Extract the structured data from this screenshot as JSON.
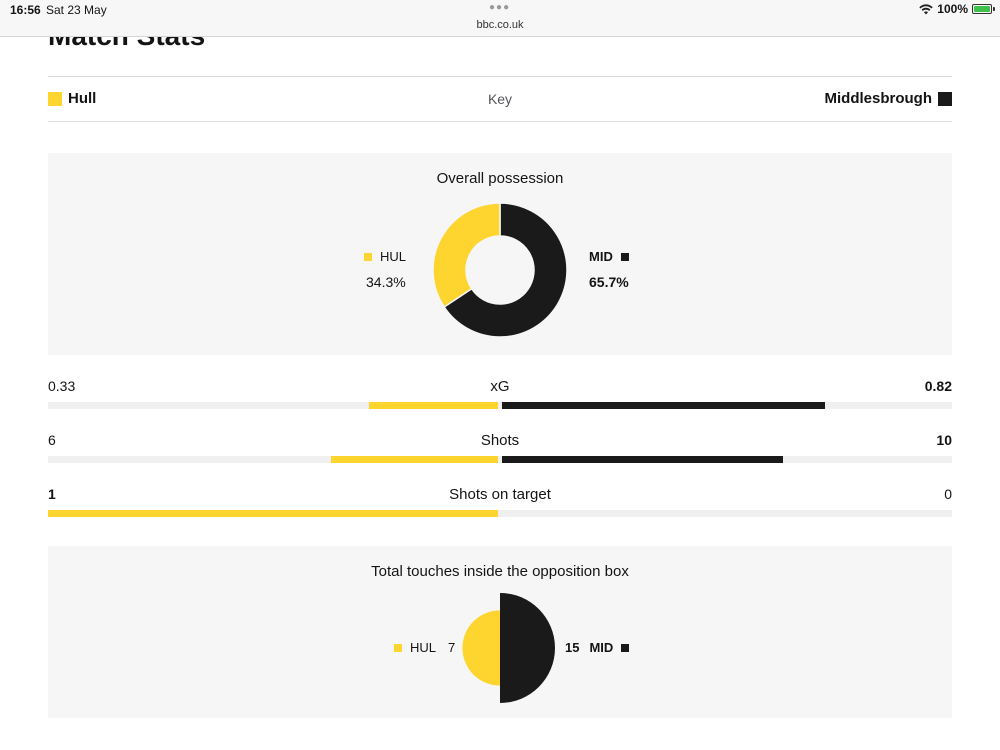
{
  "status_bar": {
    "time": "16:56",
    "date": "Sat 23 May",
    "url": "bbc.co.uk",
    "battery": "100%"
  },
  "title": "Match Stats",
  "key": {
    "home_team": "Hull",
    "away_team": "Middlesbrough",
    "label": "Key"
  },
  "colors": {
    "home": "#fed42e",
    "away": "#1a1a1a",
    "track": "#f0f0f0",
    "panel": "#f6f6f6"
  },
  "possession": {
    "title": "Overall possession",
    "home_abbr": "HUL",
    "away_abbr": "MID",
    "home_value": "34.3%",
    "away_value": "65.7%",
    "home_pct": 34.3,
    "away_pct": 65.7
  },
  "stats": [
    {
      "name": "xG",
      "home": "0.33",
      "away": "0.82",
      "home_share": 0.29,
      "away_share": 0.72,
      "leader": "away"
    },
    {
      "name": "Shots",
      "home": "6",
      "away": "10",
      "home_share": 0.375,
      "away_share": 0.625,
      "leader": "away"
    },
    {
      "name": "Shots on target",
      "home": "1",
      "away": "0",
      "home_share": 1.0,
      "away_share": 0.0,
      "leader": "home"
    }
  ],
  "touches": {
    "title": "Total touches inside the opposition box",
    "home_abbr": "HUL",
    "away_abbr": "MID",
    "home_value": "7",
    "away_value": "15"
  },
  "chart_data": [
    {
      "type": "pie",
      "title": "Overall possession",
      "categories": [
        "HUL",
        "MID"
      ],
      "values": [
        34.3,
        65.7
      ]
    },
    {
      "type": "bar",
      "categories": [
        "xG",
        "Shots",
        "Shots on target"
      ],
      "series": [
        {
          "name": "Hull",
          "values": [
            0.33,
            6,
            1
          ]
        },
        {
          "name": "Middlesbrough",
          "values": [
            0.82,
            10,
            0
          ]
        }
      ]
    },
    {
      "type": "pie",
      "title": "Total touches inside the opposition box",
      "categories": [
        "HUL",
        "MID"
      ],
      "values": [
        7,
        15
      ]
    }
  ]
}
